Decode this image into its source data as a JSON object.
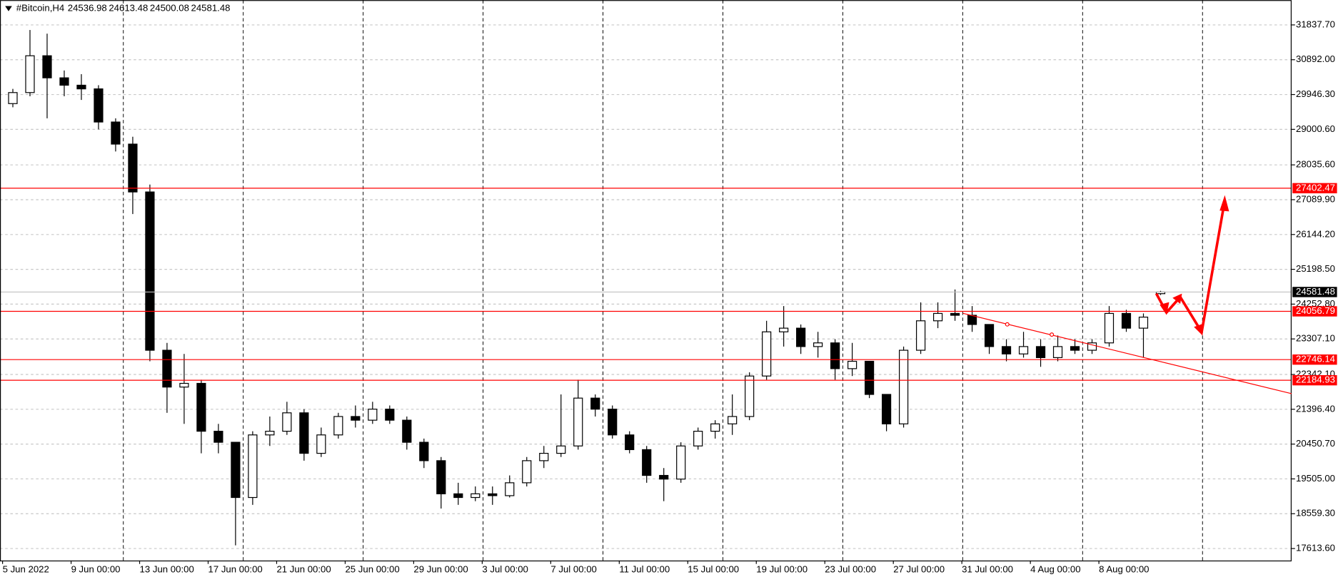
{
  "chart_data": {
    "type": "candlestick",
    "title": "#Bitcoin,H4",
    "up_color": "#ffffff",
    "down_color": "#000000",
    "level_color": "#ff0000",
    "categories": [
      "5 Jun 2022",
      null,
      null,
      null,
      "9 Jun 00:00",
      null,
      null,
      null,
      "13 Jun 00:00",
      null,
      null,
      null,
      "17 Jun 00:00",
      null,
      null,
      null,
      "21 Jun 00:00",
      null,
      null,
      null,
      "25 Jun 00:00",
      null,
      null,
      null,
      "29 Jun 00:00",
      null,
      null,
      null,
      "3 Jul 00:00",
      null,
      null,
      null,
      "7 Jul 00:00",
      null,
      null,
      null,
      "11 Jul 00:00",
      null,
      null,
      null,
      "15 Jul 00:00",
      null,
      null,
      null,
      "19 Jul 00:00",
      null,
      null,
      null,
      "23 Jul 00:00",
      null,
      null,
      null,
      "27 Jul 00:00",
      null,
      null,
      null,
      "31 Jul 00:00",
      null,
      null,
      null,
      "4 Aug 00:00",
      null,
      null,
      null,
      "8 Aug 00:00",
      null,
      null,
      null
    ],
    "open": [
      29700,
      30000,
      31000,
      30400,
      30200,
      30100,
      29200,
      28600,
      27300,
      23000,
      22000,
      22100,
      20800,
      20500,
      19000,
      20700,
      20800,
      21300,
      20200,
      20700,
      21200,
      21100,
      21400,
      21100,
      20500,
      20000,
      19100,
      19000,
      19100,
      19050,
      19400,
      20000,
      20200,
      20400,
      21700,
      21400,
      20700,
      20300,
      19600,
      19500,
      20400,
      20800,
      21000,
      21200,
      22300,
      23500,
      23600,
      23100,
      23200,
      22500,
      22700,
      21800,
      21000,
      23000,
      23800,
      24000,
      23950,
      23700,
      23100,
      22900,
      23100,
      22800,
      23100,
      23000,
      23200,
      24000,
      23600,
      24536.98
    ],
    "high": [
      30100,
      31700,
      31600,
      30600,
      30500,
      30200,
      29300,
      28800,
      27500,
      23200,
      22900,
      22200,
      21000,
      20500,
      20800,
      21200,
      21600,
      21400,
      20900,
      21300,
      21500,
      21600,
      21500,
      21200,
      20600,
      20100,
      19400,
      19300,
      19300,
      19600,
      20100,
      20400,
      21800,
      22200,
      21800,
      21500,
      20800,
      20400,
      19800,
      20500,
      20900,
      21100,
      21800,
      22400,
      23800,
      24200,
      23700,
      23500,
      23300,
      23200,
      22700,
      21800,
      23100,
      24300,
      24300,
      24650,
      24200,
      23700,
      23300,
      23500,
      23300,
      23400,
      23300,
      23300,
      24200,
      24100,
      24000,
      24613.48
    ],
    "low": [
      29600,
      29900,
      29300,
      29900,
      29800,
      29000,
      28400,
      26700,
      22700,
      21300,
      21000,
      20200,
      20200,
      17700,
      18800,
      20400,
      20700,
      20000,
      20100,
      20600,
      20900,
      21000,
      21000,
      20300,
      19800,
      18700,
      18800,
      18900,
      18800,
      19000,
      19300,
      19800,
      20100,
      20300,
      21200,
      20600,
      20200,
      19400,
      18900,
      19400,
      20300,
      20600,
      20700,
      21100,
      22200,
      23100,
      22900,
      22800,
      22200,
      22300,
      21700,
      20800,
      20900,
      22900,
      23600,
      23800,
      23500,
      22900,
      22700,
      22800,
      22550,
      22700,
      22900,
      22900,
      23100,
      23500,
      22800,
      24500.08
    ],
    "close": [
      30000,
      31000,
      30400,
      30200,
      30100,
      29200,
      28600,
      27300,
      23000,
      22000,
      22100,
      20800,
      20500,
      19000,
      20700,
      20800,
      21300,
      20200,
      20700,
      21200,
      21100,
      21400,
      21100,
      20500,
      20000,
      19100,
      19000,
      19100,
      19050,
      19400,
      20000,
      20200,
      20400,
      21700,
      21400,
      20700,
      20300,
      19600,
      19500,
      20400,
      20800,
      21000,
      21200,
      22300,
      23500,
      23600,
      23100,
      23200,
      22500,
      22700,
      21800,
      21000,
      23000,
      23800,
      24000,
      23950,
      23700,
      23100,
      22900,
      23100,
      22800,
      23100,
      23000,
      23200,
      24000,
      23600,
      23900,
      24581.48
    ],
    "levels": [
      27402.47,
      24056.79,
      22746.14,
      22184.93
    ],
    "ylim": [
      17288,
      32512
    ],
    "yticks": [
      {
        "value": 31837.7,
        "label": "31837.70"
      },
      {
        "value": 30892,
        "label": "30892.00"
      },
      {
        "value": 29946.3,
        "label": "29946.30"
      },
      {
        "value": 29000.6,
        "label": "29000.60"
      },
      {
        "value": 28035.6,
        "label": "28035.60"
      },
      {
        "value": 27089.9,
        "label": "27089.90"
      },
      {
        "value": 26144.2,
        "label": "26144.20"
      },
      {
        "value": 25198.5,
        "label": "25198.50"
      },
      {
        "value": 24252.8,
        "label": "24252.80"
      },
      {
        "value": 23307.1,
        "label": "23307.10"
      },
      {
        "value": 22342.1,
        "label": "22342.10"
      },
      {
        "value": 21396.4,
        "label": "21396.40"
      },
      {
        "value": 20450.7,
        "label": "20450.70"
      },
      {
        "value": 19505,
        "label": "19505.00"
      },
      {
        "value": 18559.3,
        "label": "18559.30"
      },
      {
        "value": 17613.6,
        "label": "17613.60"
      }
    ],
    "grid": true
  }
}
